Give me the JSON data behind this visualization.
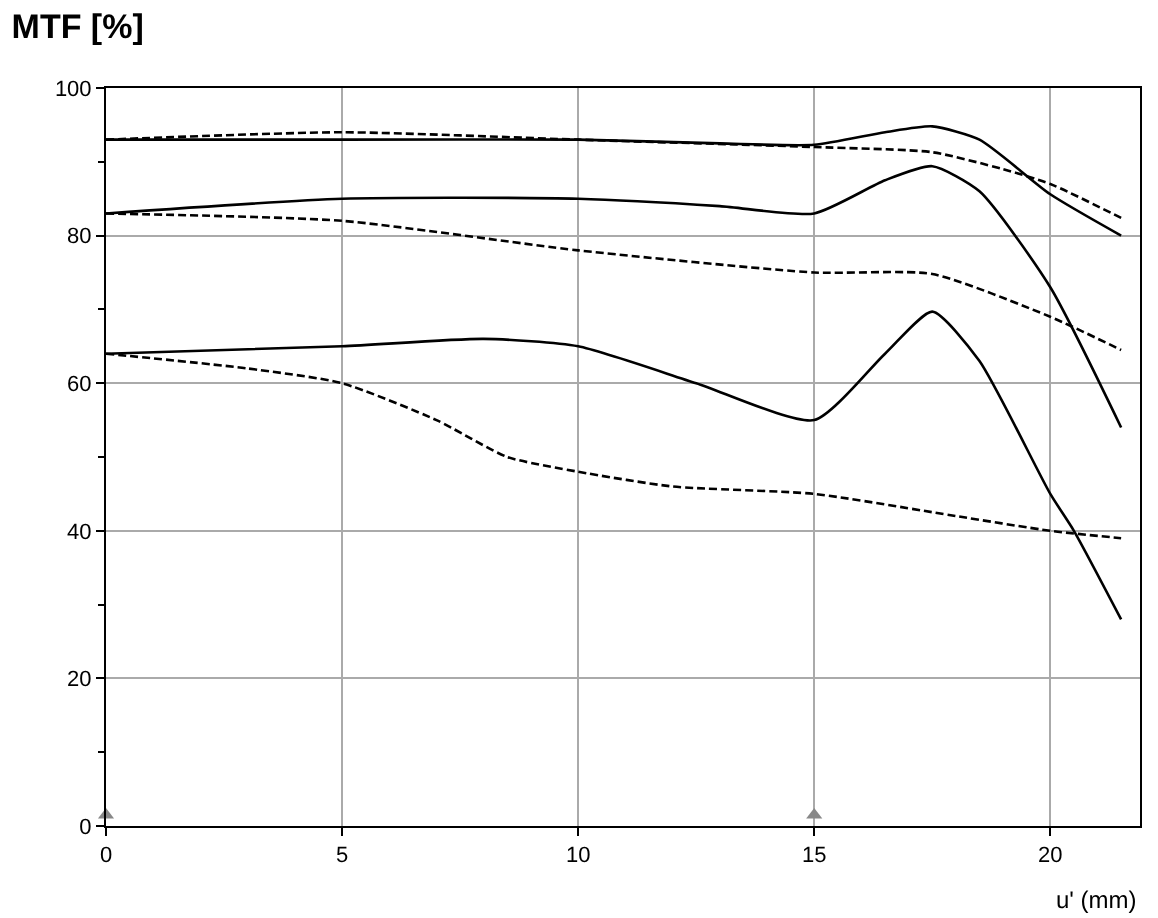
{
  "chart_data": {
    "type": "line",
    "title": "MTF [%]",
    "xlabel": "u' (mm)",
    "xlim": [
      0,
      21.9
    ],
    "xticks": [
      0,
      5,
      10,
      15,
      20
    ],
    "ylim": [
      0,
      100
    ],
    "yticks": [
      0,
      {
        "value": 10,
        "label": null
      },
      20,
      {
        "value": 30,
        "label": null
      },
      40,
      {
        "value": 50,
        "label": null
      },
      60,
      {
        "value": 70,
        "label": null
      },
      80,
      {
        "value": 90,
        "label": null
      },
      100
    ],
    "grid": true,
    "legend": false,
    "marker": "none",
    "series": [
      {
        "color": "#000000",
        "line_style": "solid",
        "x": [
          0,
          5,
          10,
          13,
          15,
          16.5,
          17.5,
          18.5,
          20,
          21.5
        ],
        "values": [
          93,
          93,
          93,
          92.5,
          92.3,
          94,
          94.8,
          93,
          85.6,
          80
        ]
      },
      {
        "color": "#000000",
        "line_style": "dashed",
        "x": [
          0,
          5,
          10,
          15,
          17.5,
          19,
          20,
          21.5
        ],
        "values": [
          93,
          94,
          93,
          92,
          91.3,
          89,
          87,
          82.4
        ]
      },
      {
        "color": "#000000",
        "line_style": "solid",
        "x": [
          0,
          5,
          10,
          13,
          15,
          16.5,
          17.5,
          18.5,
          20,
          21.5
        ],
        "values": [
          83,
          85,
          85,
          84,
          83,
          87.5,
          89.4,
          86,
          73,
          54
        ]
      },
      {
        "color": "#000000",
        "line_style": "dashed",
        "x": [
          0,
          5,
          10,
          15,
          17.5,
          20,
          21.5
        ],
        "values": [
          83,
          82,
          78,
          75,
          74.8,
          69,
          64.5
        ]
      },
      {
        "color": "#000000",
        "line_style": "solid",
        "x": [
          0,
          5,
          8,
          10,
          12.5,
          15,
          16.5,
          17.5,
          18.5,
          20,
          20.5,
          21.5
        ],
        "values": [
          64,
          65,
          66,
          65,
          60,
          55,
          64,
          69.7,
          63,
          45,
          40,
          28
        ]
      },
      {
        "color": "#000000",
        "line_style": "dashed",
        "x": [
          0,
          3,
          5,
          7,
          8.5,
          10,
          12,
          15,
          18,
          20,
          21.5
        ],
        "values": [
          64,
          62,
          60,
          55,
          50,
          48,
          46,
          45,
          42,
          40,
          39
        ]
      },
      {
        "type": "scatter",
        "marker": "triangle",
        "color": "#888888",
        "x": [
          0,
          15
        ],
        "values": [
          1.5,
          1.5
        ]
      }
    ]
  }
}
